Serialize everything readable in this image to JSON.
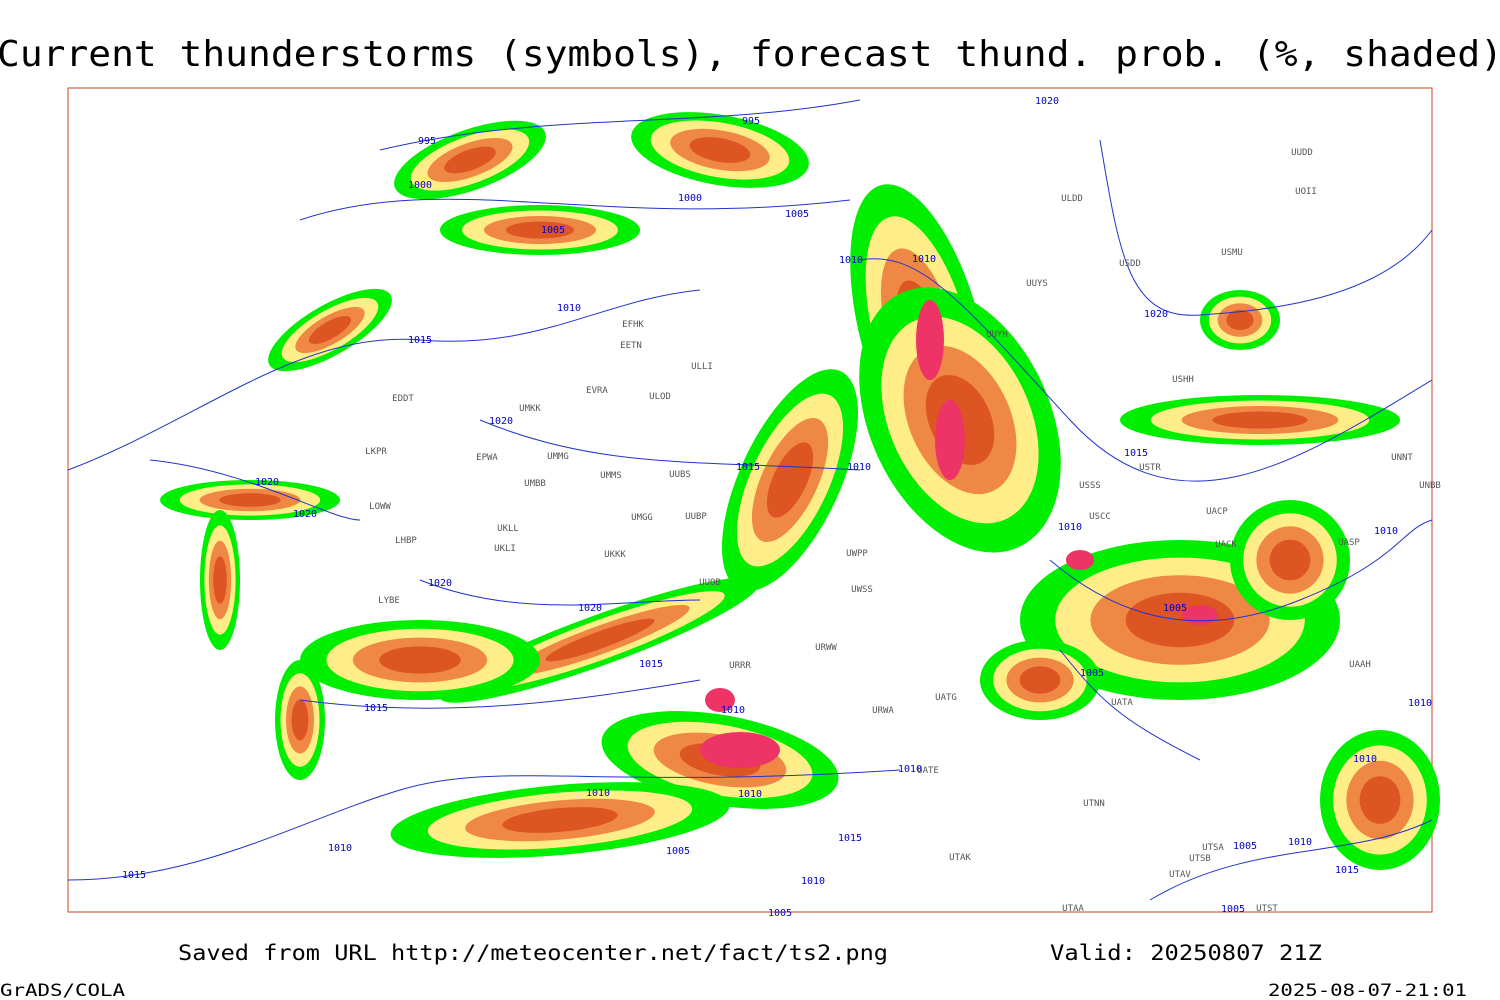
{
  "header": {
    "title": "Current thunderstorms (symbols), forecast thund. prob. (%, shaded)"
  },
  "map": {
    "isobar_labels": [
      "995",
      "995",
      "1000",
      "1000",
      "1005",
      "1005",
      "1010",
      "1010",
      "1010",
      "1015",
      "1020",
      "1020",
      "1020",
      "1015",
      "1010",
      "1015",
      "1020",
      "1020",
      "1010",
      "1010",
      "1020",
      "1020",
      "1005",
      "1015",
      "1005",
      "1015",
      "1010",
      "1010",
      "1010",
      "1010",
      "1010",
      "1010",
      "1015",
      "1010",
      "1005",
      "1005",
      "1010",
      "1015",
      "1015",
      "1010",
      "1005",
      "1005"
    ],
    "station_labels": [
      "EFHK",
      "EETN",
      "ULLI",
      "EVRA",
      "UMKK",
      "EDDT",
      "ULOD",
      "EPWA",
      "UMMG",
      "UMMS",
      "UUBS",
      "LKPR",
      "UMBB",
      "UUBP",
      "UMGG",
      "LOWW",
      "UKLL",
      "UKLI",
      "LHBP",
      "UKKK",
      "UUOB",
      "LYBE",
      "ULDD",
      "UOII",
      "UUYS",
      "USMU",
      "USDD",
      "UUYH",
      "USHH",
      "USSS",
      "USTR",
      "USCC",
      "UACP",
      "UACK",
      "UASP",
      "UNBB",
      "UNNT",
      "UWPP",
      "UWSS",
      "URWW",
      "URRR",
      "UATG",
      "URWA",
      "UATA",
      "UATE",
      "UTNN",
      "UTAK",
      "UTSA",
      "UTSB",
      "UTAV",
      "UTAA",
      "UTST",
      "UAAH",
      "UUDD"
    ]
  },
  "footer": {
    "source": "Saved from URL http://meteocenter.net/fact/ts2.png",
    "valid": "Valid: 20250807 21Z",
    "software": "GrADS/COLA",
    "timestamp": "2025-08-07-21:01"
  }
}
